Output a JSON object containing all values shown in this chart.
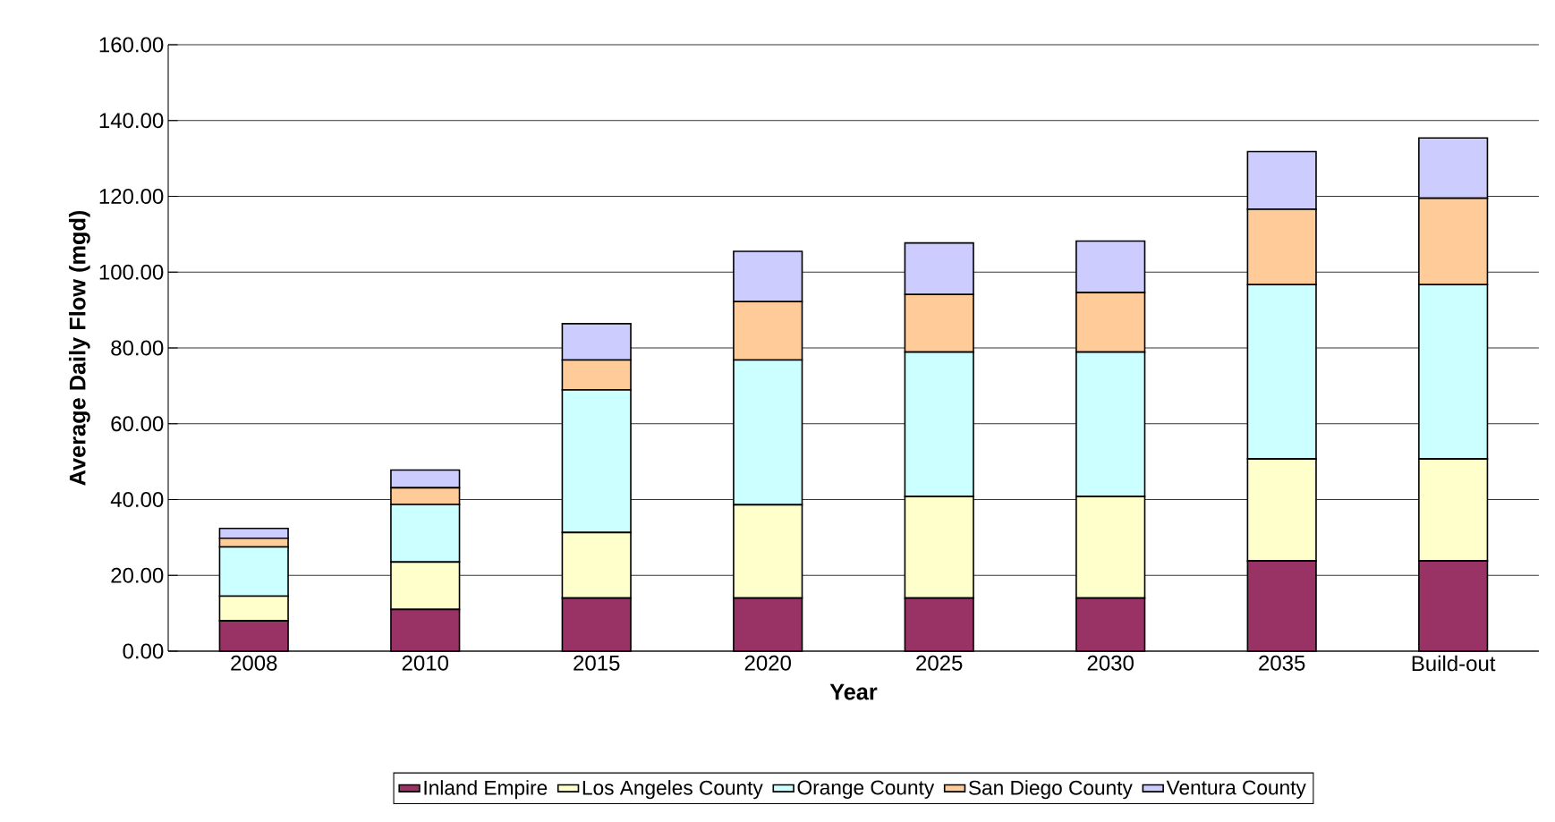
{
  "chart_data": {
    "type": "bar",
    "stacked": true,
    "xlabel": "Year",
    "ylabel": "Average Daily Flow (mgd)",
    "categories": [
      "2008",
      "2010",
      "2015",
      "2020",
      "2025",
      "2030",
      "2035",
      "Build-out"
    ],
    "series": [
      {
        "name": "Inland Empire",
        "color": "#993366",
        "values": [
          8,
          11,
          14,
          14,
          14,
          14,
          23.8,
          23.8
        ]
      },
      {
        "name": "Los Angeles County",
        "color": "#ffffcc",
        "values": [
          6.5,
          12.5,
          17.3,
          24.6,
          26.8,
          26.8,
          26.9,
          26.9
        ]
      },
      {
        "name": "Orange County",
        "color": "#ccffff",
        "values": [
          13,
          15.2,
          37.6,
          38.2,
          38.1,
          38.1,
          46,
          46
        ]
      },
      {
        "name": "San Diego County",
        "color": "#ffcc99",
        "values": [
          2.3,
          4.4,
          7.9,
          15.4,
          15.2,
          15.7,
          19.9,
          22.8
        ]
      },
      {
        "name": "Ventura County",
        "color": "#ccccff",
        "values": [
          2.6,
          4.7,
          9.6,
          13.3,
          13.6,
          13.6,
          15.2,
          15.9
        ]
      }
    ],
    "ylim": [
      0,
      160
    ],
    "yticks": [
      {
        "value": 0,
        "label": "0.00"
      },
      {
        "value": 20,
        "label": "20.00"
      },
      {
        "value": 40,
        "label": "40.00"
      },
      {
        "value": 60,
        "label": "60.00"
      },
      {
        "value": 80,
        "label": "80.00"
      },
      {
        "value": 100,
        "label": "100.00"
      },
      {
        "value": 120,
        "label": "120.00"
      },
      {
        "value": 140,
        "label": "140.00"
      },
      {
        "value": 160,
        "label": "160.00"
      }
    ],
    "grid": "y",
    "legend": "bottom"
  }
}
